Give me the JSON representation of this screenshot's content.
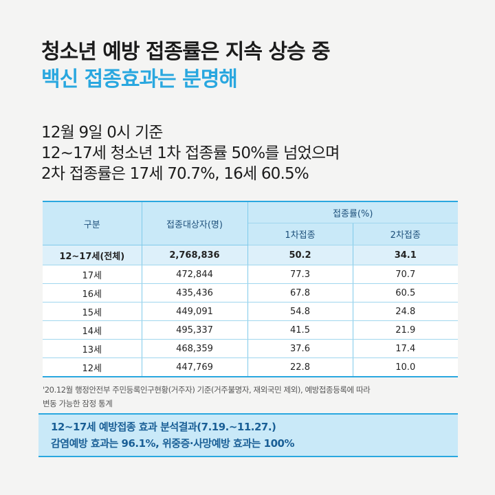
{
  "title": {
    "line1": "청소년 예방 접종률은 지속 상승 중",
    "line2": "백신 접종효과는 분명해"
  },
  "subtitle": {
    "line1": "12월 9일 0시 기준",
    "line2": "12~17세 청소년 1차 접종률 50%를 넘었으며",
    "line3": "2차 접종률은 17세 70.7%, 16세  60.5%"
  },
  "table": {
    "headers": {
      "category": "구분",
      "target": "접종대상자(명)",
      "rate": "접종률(%)",
      "dose1": "1차접종",
      "dose2": "2차접종"
    },
    "rows": [
      {
        "label": "12~17세(전체)",
        "target": "2,768,836",
        "dose1": "50.2",
        "dose2": "34.1"
      },
      {
        "label": "17세",
        "target": "472,844",
        "dose1": "77.3",
        "dose2": "70.7"
      },
      {
        "label": "16세",
        "target": "435,436",
        "dose1": "67.8",
        "dose2": "60.5"
      },
      {
        "label": "15세",
        "target": "449,091",
        "dose1": "54.8",
        "dose2": "24.8"
      },
      {
        "label": "14세",
        "target": "495,337",
        "dose1": "41.5",
        "dose2": "21.9"
      },
      {
        "label": "13세",
        "target": "468,359",
        "dose1": "37.6",
        "dose2": "17.4"
      },
      {
        "label": "12세",
        "target": "447,769",
        "dose1": "22.8",
        "dose2": "10.0"
      }
    ]
  },
  "note": {
    "line1": "'20.12월 행정안전부 주민등록인구현황(거주자) 기준(거주불명자, 재외국민 제외), 예방접종등록에 따라",
    "line2": "변동 가능한 잠정 통계"
  },
  "result": {
    "line1": "12~17세 예방접종 효과 분석결과(7.19.~11.27.)",
    "line2": "감염예방 효과는 96.1%, 위중증·사망예방 효과는 100%"
  },
  "colors": {
    "accent": "#29a7df",
    "header_bg": "#c9e9f8",
    "result_text": "#1a5f96"
  }
}
